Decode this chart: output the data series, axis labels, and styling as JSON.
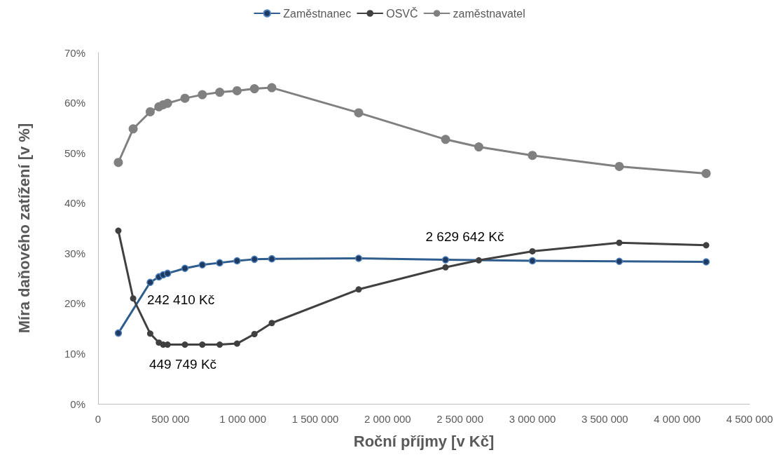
{
  "chart_data": {
    "type": "line",
    "xlabel": "Roční příjmy [v Kč]",
    "ylabel": "Míra daňového zatížení [v %]",
    "x": [
      140000,
      242410,
      360000,
      420000,
      449749,
      480000,
      600000,
      720000,
      840000,
      960000,
      1080000,
      1200000,
      1800000,
      2400000,
      2629642,
      3000000,
      3600000,
      4200000
    ],
    "series": [
      {
        "name": "Zaměstnanec",
        "color": "#2e5d8e",
        "values": [
          14.1,
          null,
          24.2,
          25.3,
          25.7,
          26.0,
          27.0,
          27.7,
          28.1,
          28.5,
          28.8,
          28.9,
          29.0,
          28.7,
          null,
          28.5,
          28.4,
          28.3
        ]
      },
      {
        "name": "OSVČ",
        "color": "#404040",
        "values": [
          34.5,
          21.0,
          14.0,
          12.2,
          11.8,
          11.8,
          11.8,
          11.8,
          11.8,
          12.0,
          13.9,
          16.1,
          22.8,
          27.2,
          28.6,
          30.4,
          32.1,
          31.6
        ]
      },
      {
        "name": "zaměstnavatel",
        "color": "#808080",
        "values": [
          48.1,
          54.8,
          58.2,
          59.2,
          59.6,
          59.9,
          60.9,
          61.6,
          62.1,
          62.4,
          62.8,
          63.0,
          58.0,
          52.7,
          51.2,
          49.5,
          47.3,
          45.9
        ]
      }
    ],
    "xlim": [
      0,
      4500000
    ],
    "xticks": [
      {
        "value": 0,
        "label": "0"
      },
      {
        "value": 500000,
        "label": "500 000"
      },
      {
        "value": 1000000,
        "label": "1 000 000"
      },
      {
        "value": 1500000,
        "label": "1 500 000"
      },
      {
        "value": 2000000,
        "label": "2 000 000"
      },
      {
        "value": 2500000,
        "label": "2 500 000"
      },
      {
        "value": 3000000,
        "label": "3 000 000"
      },
      {
        "value": 3500000,
        "label": "3 500 000"
      },
      {
        "value": 4000000,
        "label": "4 000 000"
      },
      {
        "value": 4500000,
        "label": "4 500 000"
      }
    ],
    "ylim": [
      0,
      70
    ],
    "yticks": [
      {
        "value": 0,
        "label": "0%"
      },
      {
        "value": 10,
        "label": "10%"
      },
      {
        "value": 20,
        "label": "20%"
      },
      {
        "value": 30,
        "label": "30%"
      },
      {
        "value": 40,
        "label": "40%"
      },
      {
        "value": 50,
        "label": "50%"
      },
      {
        "value": 60,
        "label": "60%"
      },
      {
        "value": 70,
        "label": "70%"
      }
    ],
    "annotations": [
      {
        "text": "242 410 Kč",
        "x": 242410,
        "y": 21.0
      },
      {
        "text": "449 749 Kč",
        "x": 449749,
        "y": 11.8
      },
      {
        "text": "2 629 642 Kč",
        "x": 2629642,
        "y": 28.6
      }
    ],
    "legend": "top",
    "marker": "circle",
    "line_style": "solid",
    "grid": false
  }
}
